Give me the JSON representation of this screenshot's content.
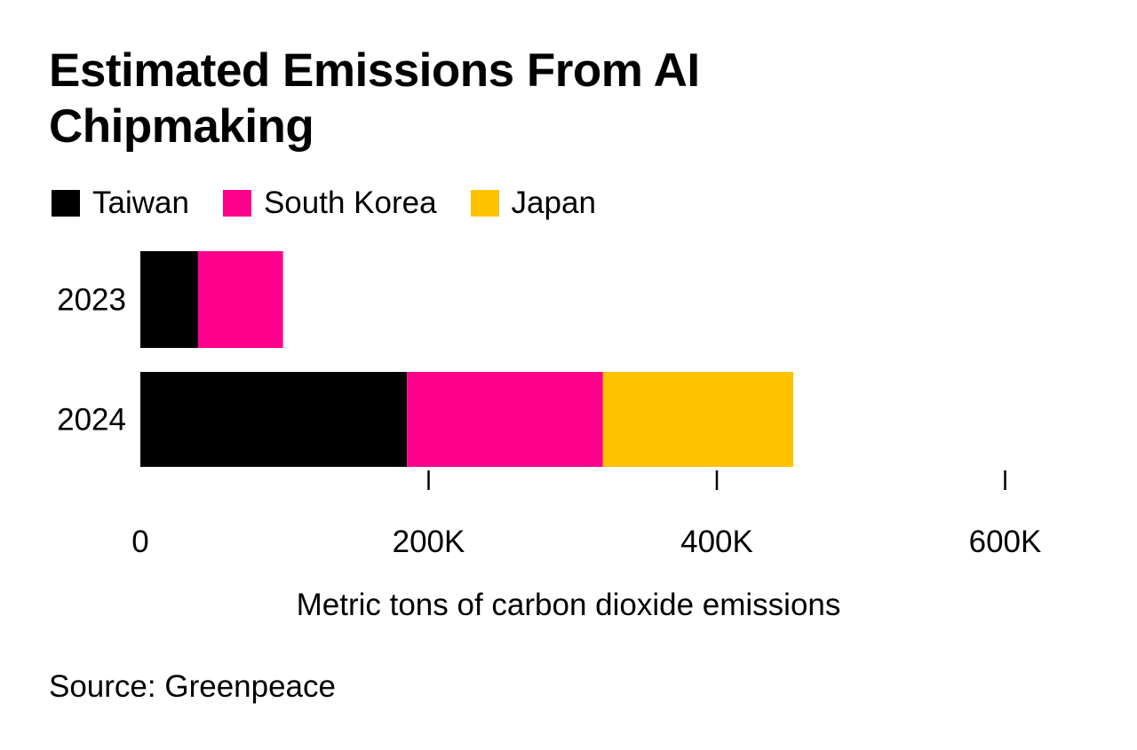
{
  "chart_data": {
    "type": "bar",
    "orientation": "horizontal",
    "stacked": true,
    "title": "Estimated Emissions From AI Chipmaking",
    "xlabel": "Metric tons of carbon dioxide emissions",
    "ylabel": "",
    "categories": [
      "2023",
      "2024"
    ],
    "series": [
      {
        "name": "Taiwan",
        "color": "#000000",
        "values": [
          40000,
          185000
        ]
      },
      {
        "name": "South Korea",
        "color": "#ff008c",
        "values": [
          59000,
          136000
        ]
      },
      {
        "name": "Japan",
        "color": "#ffc200",
        "values": [
          0,
          132000
        ]
      }
    ],
    "xlim": [
      0,
      600000
    ],
    "xticks": [
      0,
      200000,
      400000,
      600000
    ],
    "xtick_labels": [
      "0",
      "200K",
      "400K",
      "600K"
    ],
    "grid": false,
    "legend_position": "top-left",
    "source": "Source: Greenpeace"
  }
}
